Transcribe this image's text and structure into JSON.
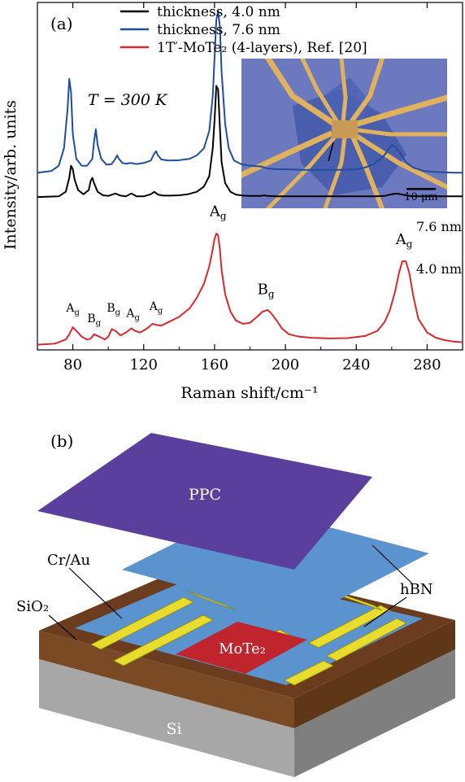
{
  "panel_a": {
    "label": "(a)",
    "temperature": "T = 300 K",
    "inset": {
      "scale_bar_label": "10 μm",
      "colors": {
        "substrate": "#6c79bf",
        "flake": "#3f56a8",
        "electrode": "#e0b25e"
      }
    }
  },
  "panel_b": {
    "label": "(b)",
    "layers": [
      {
        "name": "PPC",
        "color": "#5a3f9c"
      },
      {
        "name": "hBN",
        "color": "#5b93cf"
      },
      {
        "name": "MoTe₂",
        "color": "#c0242c"
      },
      {
        "name": "Cr/Au",
        "color": "#e8dc2e"
      },
      {
        "name": "SiO₂",
        "color": "#6b3c1d"
      },
      {
        "name": "Si",
        "color": "#8c8c8c"
      }
    ],
    "labels": {
      "ppc": "PPC",
      "hbn": "hBN",
      "mote2": "MoTe₂",
      "crau": "Cr/Au",
      "sio2": "SiO₂",
      "si": "Si"
    }
  },
  "chart_data": {
    "type": "line",
    "xlabel": "Raman shift/cm⁻¹",
    "ylabel": "Intensity/arb. units",
    "xlim": [
      60,
      300
    ],
    "xticks": [
      80,
      120,
      160,
      200,
      240,
      280
    ],
    "ylim": [
      0,
      10
    ],
    "legend": {
      "placement": "top"
    },
    "series": [
      {
        "name": "thickness, 4.0 nm",
        "color": "#000000",
        "end_label": "4.0 nm",
        "x": [
          60,
          72,
          76,
          78,
          79,
          80,
          81,
          83,
          86,
          89,
          90,
          91,
          92,
          94,
          97,
          100,
          104,
          107,
          110,
          113,
          116,
          120,
          124,
          126,
          128,
          131,
          135,
          140,
          145,
          150,
          154,
          157,
          159,
          160,
          161,
          162,
          163,
          164,
          166,
          169,
          172,
          176,
          180,
          186,
          188,
          190,
          195,
          200,
          210,
          220,
          230,
          240,
          250,
          256,
          260,
          263,
          266,
          270,
          276,
          285,
          295,
          300
        ],
        "y": [
          4.4,
          4.42,
          4.55,
          4.95,
          5.3,
          5.2,
          4.9,
          4.6,
          4.48,
          4.6,
          4.85,
          4.95,
          4.8,
          4.55,
          4.45,
          4.43,
          4.5,
          4.44,
          4.42,
          4.5,
          4.42,
          4.42,
          4.48,
          4.55,
          4.47,
          4.44,
          4.44,
          4.45,
          4.48,
          4.55,
          4.7,
          5.0,
          5.8,
          6.6,
          7.6,
          7.5,
          6.4,
          5.4,
          4.8,
          4.55,
          4.47,
          4.44,
          4.43,
          4.43,
          4.45,
          4.43,
          4.42,
          4.42,
          4.42,
          4.42,
          4.42,
          4.42,
          4.42,
          4.43,
          4.48,
          4.5,
          4.47,
          4.43,
          4.42,
          4.42,
          4.42,
          4.42
        ]
      },
      {
        "name": "thickness, 7.6 nm",
        "color": "#1f4e9e",
        "end_label": "7.6 nm",
        "x": [
          60,
          68,
          72,
          75,
          77,
          78,
          79,
          80,
          82,
          85,
          88,
          91,
          92,
          93,
          94,
          96,
          99,
          102,
          104,
          105,
          106,
          108,
          110,
          113,
          116,
          120,
          124,
          126,
          127,
          128,
          130,
          134,
          140,
          146,
          150,
          154,
          157,
          159,
          160,
          161,
          162,
          163,
          164,
          166,
          168,
          171,
          175,
          180,
          186,
          190,
          195,
          200,
          210,
          220,
          230,
          240,
          245,
          250,
          255,
          258,
          260,
          262,
          265,
          268,
          272,
          278,
          285,
          295,
          300
        ],
        "y": [
          5.1,
          5.15,
          5.3,
          5.8,
          6.9,
          7.8,
          7.4,
          6.2,
          5.5,
          5.3,
          5.3,
          5.5,
          6.0,
          6.35,
          5.9,
          5.5,
          5.33,
          5.35,
          5.5,
          5.6,
          5.5,
          5.38,
          5.36,
          5.38,
          5.35,
          5.38,
          5.45,
          5.65,
          5.72,
          5.6,
          5.48,
          5.45,
          5.46,
          5.5,
          5.6,
          5.8,
          6.3,
          7.3,
          8.4,
          9.5,
          9.75,
          9.3,
          8.0,
          6.5,
          5.8,
          5.45,
          5.35,
          5.3,
          5.28,
          5.22,
          5.2,
          5.2,
          5.18,
          5.18,
          5.18,
          5.2,
          5.25,
          5.35,
          5.55,
          5.75,
          5.9,
          5.85,
          5.65,
          5.4,
          5.25,
          5.15,
          5.12,
          5.1,
          5.1
        ]
      },
      {
        "name": "1T′-MoTe₂ (4-layers), Ref. [20]",
        "color": "#d42a2e",
        "x": [
          60,
          70,
          76,
          78,
          80,
          82,
          85,
          88,
          90,
          92,
          95,
          98,
          100,
          102,
          104,
          107,
          110,
          113,
          115,
          118,
          122,
          125,
          127,
          130,
          134,
          140,
          146,
          150,
          154,
          157,
          159,
          160,
          161,
          162,
          163,
          164,
          166,
          169,
          172,
          176,
          180,
          184,
          187,
          190,
          192,
          195,
          198,
          202,
          208,
          215,
          225,
          235,
          245,
          252,
          256,
          259,
          262,
          264,
          266,
          268,
          270,
          272,
          275,
          280,
          285,
          290,
          295,
          300
        ],
        "y": [
          0.15,
          0.18,
          0.3,
          0.45,
          0.65,
          0.55,
          0.38,
          0.3,
          0.32,
          0.45,
          0.38,
          0.3,
          0.38,
          0.6,
          0.55,
          0.42,
          0.5,
          0.62,
          0.55,
          0.5,
          0.62,
          0.75,
          0.72,
          0.7,
          0.8,
          0.95,
          1.2,
          1.5,
          1.9,
          2.4,
          2.9,
          3.2,
          3.35,
          3.3,
          2.9,
          2.3,
          1.6,
          1.1,
          0.85,
          0.75,
          0.78,
          0.95,
          1.1,
          1.15,
          1.05,
          0.85,
          0.62,
          0.45,
          0.38,
          0.35,
          0.33,
          0.34,
          0.4,
          0.55,
          0.8,
          1.15,
          1.7,
          2.2,
          2.55,
          2.55,
          2.2,
          1.6,
          0.9,
          0.5,
          0.35,
          0.28,
          0.24,
          0.22
        ]
      }
    ],
    "annotations": [
      {
        "text": "A",
        "sub": "g",
        "x": 80,
        "y": 1.1
      },
      {
        "text": "B",
        "sub": "g",
        "x": 92,
        "y": 0.8
      },
      {
        "text": "B",
        "sub": "g",
        "x": 103,
        "y": 1.1
      },
      {
        "text": "A",
        "sub": "g",
        "x": 114,
        "y": 0.95
      },
      {
        "text": "A",
        "sub": "g",
        "x": 127,
        "y": 1.15
      },
      {
        "text": "A",
        "sub": "g",
        "x": 162,
        "y": 3.85
      },
      {
        "text": "B",
        "sub": "g",
        "x": 189,
        "y": 1.6
      },
      {
        "text": "A",
        "sub": "g",
        "x": 267,
        "y": 3.05
      }
    ]
  }
}
